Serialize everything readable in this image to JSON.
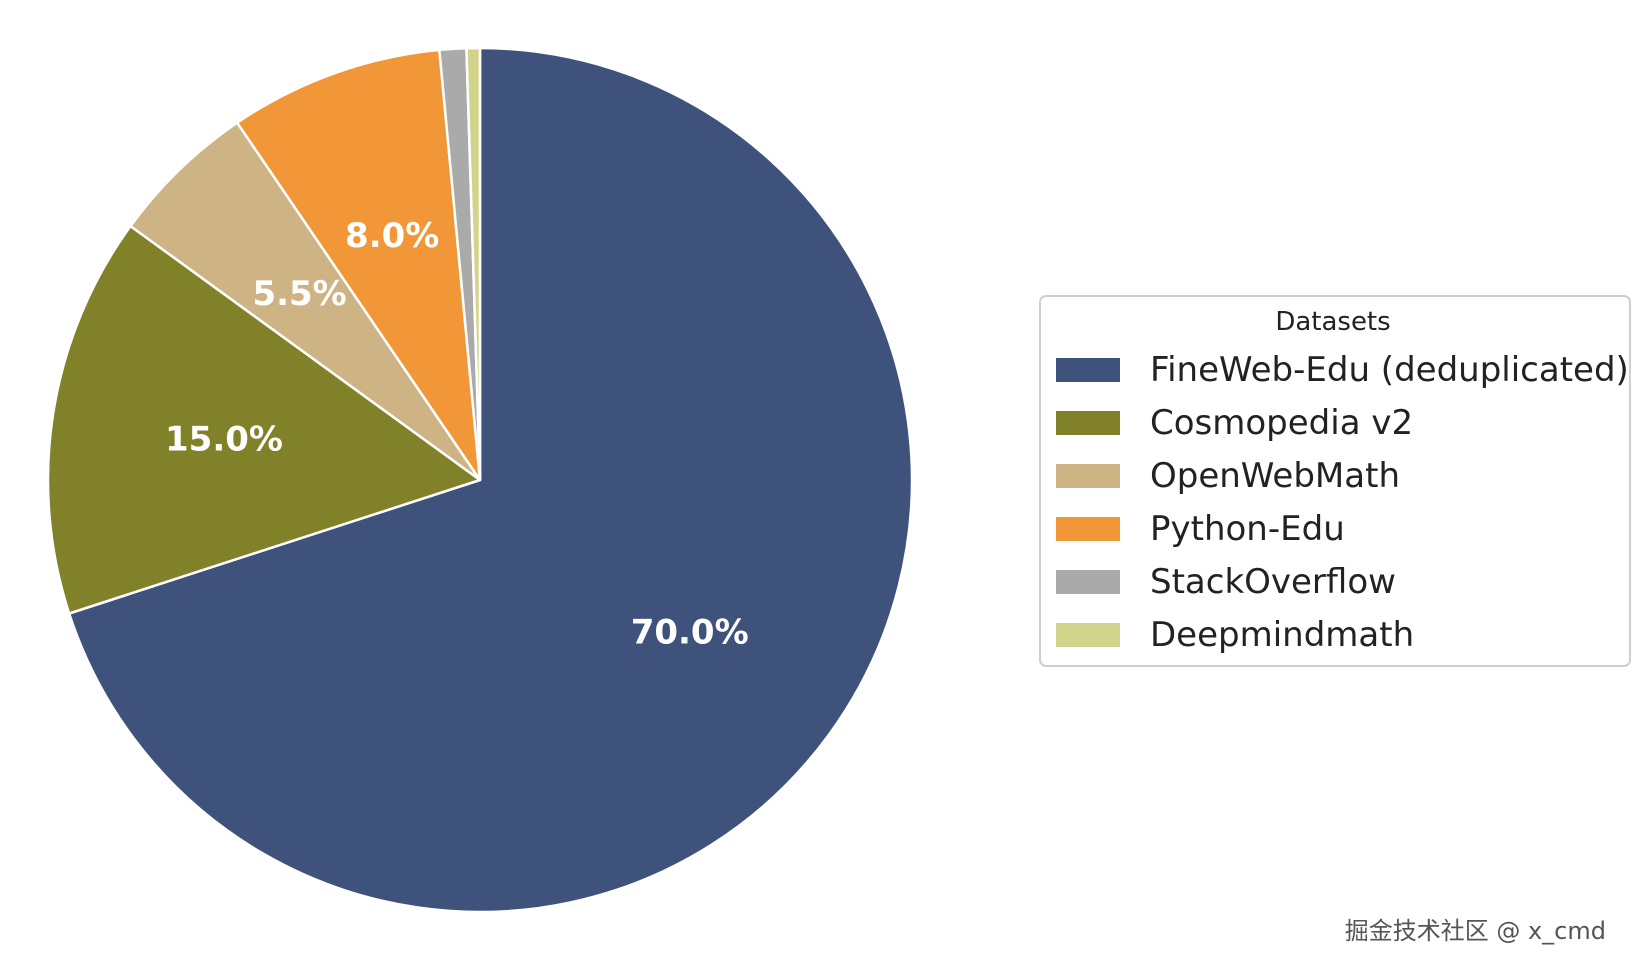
{
  "chart_data": {
    "type": "pie",
    "labels": [
      "FineWeb-Edu (deduplicated)",
      "Cosmopedia v2",
      "OpenWebMath",
      "Python-Edu",
      "StackOverflow",
      "Deepmindmath"
    ],
    "values": [
      70.0,
      15.0,
      5.5,
      8.0,
      1.0,
      0.5
    ],
    "colors": [
      "#3e527c",
      "#808129",
      "#ceb385",
      "#f19737",
      "#aaaaaa",
      "#d3d48c"
    ],
    "slice_labels": [
      "70.0%",
      "15.0%",
      "5.5%",
      "8.0%",
      "",
      ""
    ],
    "legend_title": "Datasets",
    "legend_placement": "right",
    "start_angle_deg": 90,
    "direction": "clockwise"
  },
  "watermark": "掘金技术社区 @ x_cmd"
}
